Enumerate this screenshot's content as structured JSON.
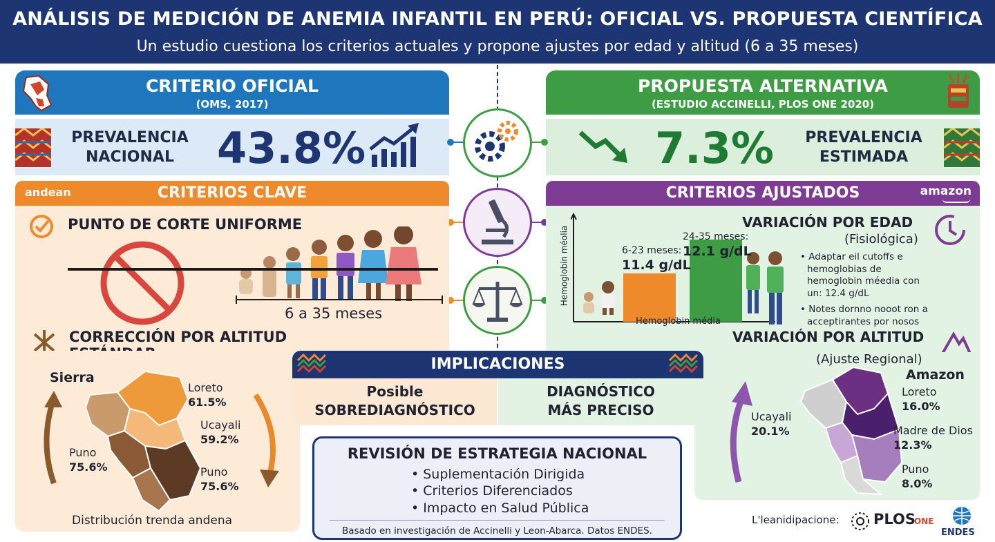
{
  "header": {
    "title": "ANÁLISIS DE MEDICIÓN DE ANEMIA INFANTIL EN PERÚ: OFICIAL VS. PROPUESTA CIENTÍFICA",
    "subtitle": "Un estudio cuestiona los criterios actuales y propone ajustes por edad y altitud (6 a 35 meses)"
  },
  "official": {
    "title": "CRITERIO OFICIAL",
    "subtitle": "(OMS, 2017)",
    "prevalence_label_1": "PREVALENCIA",
    "prevalence_label_2": "NACIONAL",
    "prevalence_value": "43.8%"
  },
  "alternative": {
    "title": "PROPUESTA ALTERNATIVA",
    "subtitle": "(ESTUDIO ACCINELLI, PLOS ONE 2020)",
    "prevalence_label_1": "PREVALENCIA",
    "prevalence_label_2": "ESTIMADA",
    "prevalence_value": "7.3%"
  },
  "key_criteria": {
    "tag": "andean",
    "title": "CRITERIOS CLAVE",
    "cut_point": "PUNTO DE CORTE UNIFORME",
    "age_range": "6 a 35 meses",
    "altitude_title_1": "CORRECCIÓN POR ALTITUD",
    "altitude_title_2": "ESTÁNDAR",
    "region_label": "Sierra",
    "caption": "Distribución trenda andena",
    "map_labels": [
      {
        "name": "Loreto",
        "value": "61.5%"
      },
      {
        "name": "Ucayali",
        "value": "59.2%"
      },
      {
        "name": "Puno",
        "value": "75.6%"
      },
      {
        "name": "Puno",
        "value": "75.6%"
      }
    ]
  },
  "adjusted_criteria": {
    "title": "CRITERIOS AJUSTADOS",
    "tag": "amazon",
    "age_title": "VARIACIÓN POR EDAD",
    "age_sub": "(Fisiológica)",
    "chart_ylabel": "Hemoglobin méolia",
    "chart_xlabel": "Hemoglobin média",
    "bar1_label": "6-23 meses:",
    "bar1_value": "11.4 g/dL",
    "bar2_label": "24-35 meses:",
    "bar2_value": "12.1 g/dL",
    "bullet1": "Adaptar eil cutoffs e hemoglobias de hemoglobin méedia con un: 12.4 g/dL",
    "bullet2": "Notes dornno nooot ron a acceptirantes por nosos",
    "altitude_title": "VARIACIÓN POR ALTITUD",
    "altitude_sub": "(Ajuste Regional)",
    "region_label": "Amazon",
    "map_labels": [
      {
        "name": "Loreto",
        "value": "16.0%"
      },
      {
        "name": "Ucayali",
        "value": "20.1%"
      },
      {
        "name": "Madre de Dios",
        "value": "12.3%"
      },
      {
        "name": "Puno",
        "value": "8.0%"
      }
    ]
  },
  "chart_data": {
    "type": "bar",
    "categories": [
      "6-23 meses",
      "24-35 meses"
    ],
    "values": [
      11.4,
      12.1
    ],
    "xlabel": "Hemoglobin média",
    "ylabel": "Hemoglobin méolia"
  },
  "implications": {
    "title": "IMPLICACIONES",
    "left_1": "Posible",
    "left_2": "SOBREDIAGNÓSTICO",
    "right_1": "DIAGNÓSTICO",
    "right_2": "MÁS PRECISO"
  },
  "strategy": {
    "title": "REVISIÓN DE ESTRATEGIA NACIONAL",
    "items": [
      "Suplementación Dirigida",
      "Criterios Diferenciados",
      "Impacto en Salud Pública"
    ],
    "source": "Basado en investigación de Accinelli y Leon-Abarca. Datos ENDES."
  },
  "footer": {
    "label": "L'leanidipacione:",
    "plos": "PLOS",
    "one": "ONE",
    "endes": "ENDES"
  },
  "colors": {
    "navy": "#1d3572",
    "blue": "#1e77bd",
    "green": "#3e9c45",
    "orange": "#ef8a2c",
    "purple": "#7e3b93"
  }
}
